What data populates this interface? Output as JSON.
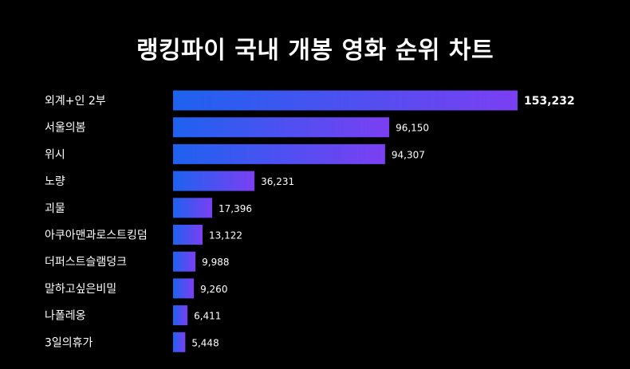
{
  "title": "랭킹파이 국내 개봉 영화 순위 차트",
  "colors": {
    "background": "#000000",
    "bar_start": "#1e62f0",
    "bar_end": "#7b3ff2",
    "text": "#ffffff"
  },
  "chart_data": {
    "type": "bar",
    "orientation": "horizontal",
    "title": "랭킹파이 국내 개봉 영화 순위 차트",
    "categories": [
      "외계+인 2부",
      "서울의봄",
      "위시",
      "노량",
      "괴물",
      "아쿠아맨과로스트킹덤",
      "더퍼스트슬램덩크",
      "말하고싶은비밀",
      "나폴레옹",
      "3일의휴가"
    ],
    "values": [
      153232,
      96150,
      94307,
      36231,
      17396,
      13122,
      9988,
      9260,
      6411,
      5448
    ],
    "value_labels": [
      "153,232",
      "96,150",
      "94,307",
      "36,231",
      "17,396",
      "13,122",
      "9,988",
      "9,260",
      "6,411",
      "5,448"
    ],
    "xlabel": "",
    "ylabel": "",
    "xlim": [
      0,
      153232
    ],
    "grid": false,
    "legend": "none"
  }
}
